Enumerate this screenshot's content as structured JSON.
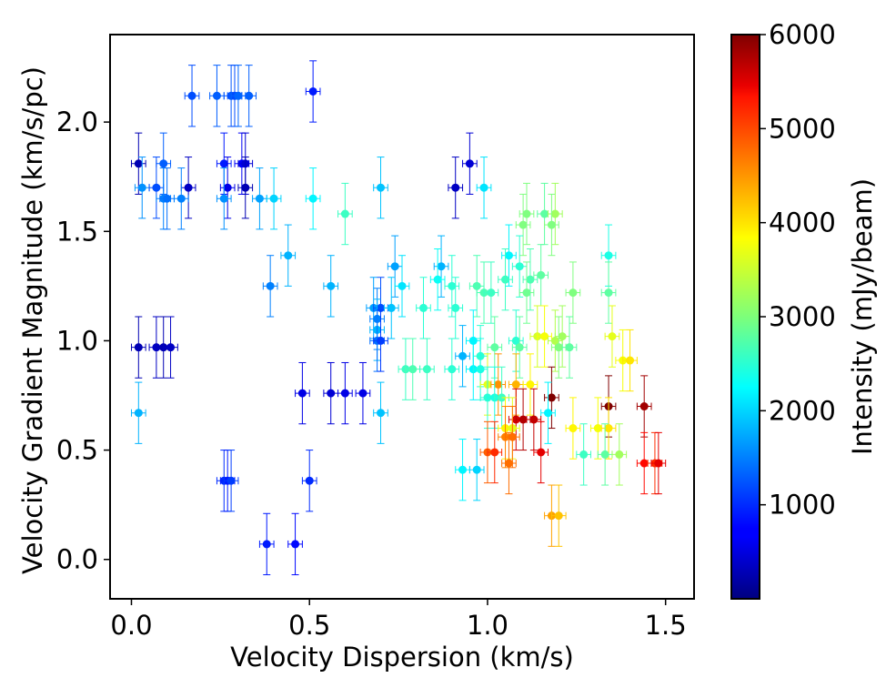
{
  "chart_data": {
    "type": "scatter",
    "title": "",
    "xlabel": "Velocity Dispersion (km/s)",
    "ylabel": "Velocity Gradient Magnitude (km/s/pc)",
    "xlim": [
      -0.06,
      1.58
    ],
    "ylim": [
      -0.18,
      2.4
    ],
    "xticks": [
      0.0,
      0.5,
      1.0,
      1.5
    ],
    "xtick_labels": [
      "0.0",
      "0.5",
      "1.0",
      "1.5"
    ],
    "yticks": [
      0.0,
      0.5,
      1.0,
      1.5,
      2.0
    ],
    "ytick_labels": [
      "0.0",
      "0.5",
      "1.0",
      "1.5",
      "2.0"
    ],
    "x_error": 0.02,
    "colorbar": {
      "label": "Intensity (mJy/beam)",
      "range": [
        0,
        6000
      ],
      "ticks": [
        1000,
        2000,
        3000,
        4000,
        5000,
        6000
      ],
      "tick_labels": [
        "1000",
        "2000",
        "3000",
        "4000",
        "5000",
        "6000"
      ],
      "colormap": "jet"
    },
    "columns": [
      "x",
      "y",
      "yerr",
      "intensity"
    ],
    "points": [
      [
        0.17,
        2.12,
        0.14,
        1200
      ],
      [
        0.24,
        2.12,
        0.14,
        1300
      ],
      [
        0.28,
        2.12,
        0.14,
        1250
      ],
      [
        0.29,
        2.12,
        0.14,
        1200
      ],
      [
        0.3,
        2.12,
        0.14,
        1350
      ],
      [
        0.33,
        2.12,
        0.14,
        1300
      ],
      [
        0.51,
        2.14,
        0.14,
        900
      ],
      [
        0.02,
        1.81,
        0.14,
        300
      ],
      [
        0.09,
        1.81,
        0.14,
        1300
      ],
      [
        0.26,
        1.81,
        0.14,
        900
      ],
      [
        0.31,
        1.81,
        0.14,
        700
      ],
      [
        0.32,
        1.81,
        0.14,
        500
      ],
      [
        0.95,
        1.81,
        0.14,
        500
      ],
      [
        0.03,
        1.7,
        0.14,
        1600
      ],
      [
        0.07,
        1.7,
        0.14,
        1200
      ],
      [
        0.16,
        1.7,
        0.14,
        400
      ],
      [
        0.27,
        1.7,
        0.14,
        600
      ],
      [
        0.32,
        1.7,
        0.14,
        300
      ],
      [
        0.7,
        1.7,
        0.14,
        1900
      ],
      [
        0.91,
        1.7,
        0.14,
        400
      ],
      [
        0.99,
        1.7,
        0.14,
        2100
      ],
      [
        0.09,
        1.65,
        0.14,
        1500
      ],
      [
        0.1,
        1.65,
        0.14,
        1400
      ],
      [
        0.14,
        1.65,
        0.14,
        1500
      ],
      [
        0.26,
        1.65,
        0.14,
        1600
      ],
      [
        0.36,
        1.65,
        0.14,
        1700
      ],
      [
        0.4,
        1.65,
        0.14,
        2000
      ],
      [
        0.51,
        1.65,
        0.14,
        2200
      ],
      [
        0.6,
        1.58,
        0.14,
        2600
      ],
      [
        1.11,
        1.58,
        0.14,
        3000
      ],
      [
        1.16,
        1.58,
        0.14,
        2800
      ],
      [
        1.19,
        1.58,
        0.14,
        3200
      ],
      [
        1.1,
        1.53,
        0.14,
        3000
      ],
      [
        1.18,
        1.53,
        0.14,
        3000
      ],
      [
        0.44,
        1.39,
        0.14,
        1800
      ],
      [
        1.06,
        1.39,
        0.14,
        2200
      ],
      [
        1.34,
        1.39,
        0.14,
        2400
      ],
      [
        0.74,
        1.34,
        0.14,
        1700
      ],
      [
        0.87,
        1.34,
        0.14,
        1800
      ],
      [
        1.09,
        1.34,
        0.14,
        2500
      ],
      [
        1.15,
        1.3,
        0.14,
        2800
      ],
      [
        0.86,
        1.28,
        0.14,
        2300
      ],
      [
        1.05,
        1.28,
        0.14,
        2600
      ],
      [
        1.12,
        1.28,
        0.14,
        2700
      ],
      [
        0.39,
        1.25,
        0.14,
        1500
      ],
      [
        0.56,
        1.25,
        0.14,
        1800
      ],
      [
        0.76,
        1.25,
        0.14,
        2100
      ],
      [
        0.9,
        1.25,
        0.14,
        2500
      ],
      [
        0.97,
        1.25,
        0.14,
        2700
      ],
      [
        0.99,
        1.22,
        0.14,
        2700
      ],
      [
        1.01,
        1.22,
        0.14,
        2600
      ],
      [
        1.11,
        1.22,
        0.14,
        2900
      ],
      [
        1.24,
        1.22,
        0.14,
        3000
      ],
      [
        1.34,
        1.22,
        0.14,
        2800
      ],
      [
        0.68,
        1.15,
        0.14,
        1700
      ],
      [
        0.7,
        1.15,
        0.14,
        1200
      ],
      [
        0.73,
        1.15,
        0.14,
        1900
      ],
      [
        0.82,
        1.15,
        0.14,
        2500
      ],
      [
        0.91,
        1.15,
        0.14,
        2500
      ],
      [
        0.69,
        1.1,
        0.14,
        1500
      ],
      [
        0.69,
        1.05,
        0.14,
        1800
      ],
      [
        0.69,
        1.0,
        0.14,
        1400
      ],
      [
        0.7,
        1.0,
        0.14,
        1100
      ],
      [
        0.96,
        1.0,
        0.14,
        2200
      ],
      [
        1.08,
        1.0,
        0.14,
        2500
      ],
      [
        1.14,
        1.02,
        0.14,
        3500
      ],
      [
        1.16,
        1.02,
        0.14,
        3700
      ],
      [
        1.19,
        1.0,
        0.14,
        3300
      ],
      [
        1.21,
        1.02,
        0.14,
        3200
      ],
      [
        1.35,
        1.02,
        0.14,
        3600
      ],
      [
        1.02,
        0.97,
        0.14,
        2800
      ],
      [
        1.09,
        0.97,
        0.14,
        2800
      ],
      [
        1.2,
        0.97,
        0.14,
        3000
      ],
      [
        1.23,
        0.97,
        0.14,
        2800
      ],
      [
        0.02,
        0.97,
        0.14,
        300
      ],
      [
        0.07,
        0.97,
        0.14,
        400
      ],
      [
        0.09,
        0.97,
        0.14,
        300
      ],
      [
        0.11,
        0.97,
        0.14,
        400
      ],
      [
        0.93,
        0.93,
        0.14,
        1800
      ],
      [
        0.98,
        0.93,
        0.14,
        2500
      ],
      [
        1.38,
        0.91,
        0.14,
        3700
      ],
      [
        1.4,
        0.91,
        0.14,
        3900
      ],
      [
        0.77,
        0.87,
        0.14,
        2600
      ],
      [
        0.79,
        0.87,
        0.14,
        2700
      ],
      [
        0.83,
        0.87,
        0.14,
        2600
      ],
      [
        0.9,
        0.87,
        0.14,
        2500
      ],
      [
        0.96,
        0.87,
        0.14,
        2200
      ],
      [
        0.98,
        0.87,
        0.14,
        2400
      ],
      [
        1.0,
        0.8,
        0.14,
        3600
      ],
      [
        1.03,
        0.8,
        0.14,
        4400
      ],
      [
        1.08,
        0.8,
        0.14,
        4200
      ],
      [
        1.12,
        0.8,
        0.14,
        3800
      ],
      [
        0.48,
        0.76,
        0.14,
        600
      ],
      [
        0.56,
        0.76,
        0.14,
        500
      ],
      [
        0.6,
        0.76,
        0.14,
        600
      ],
      [
        0.65,
        0.76,
        0.14,
        600
      ],
      [
        1.0,
        0.74,
        0.14,
        2500
      ],
      [
        1.02,
        0.74,
        0.14,
        2400
      ],
      [
        1.04,
        0.74,
        0.14,
        2600
      ],
      [
        1.18,
        0.74,
        0.14,
        6000
      ],
      [
        1.34,
        0.7,
        0.14,
        6000
      ],
      [
        1.44,
        0.7,
        0.14,
        5800
      ],
      [
        0.7,
        0.67,
        0.14,
        1900
      ],
      [
        1.17,
        0.67,
        0.14,
        2200
      ],
      [
        0.02,
        0.67,
        0.14,
        1800
      ],
      [
        1.08,
        0.64,
        0.14,
        5500
      ],
      [
        1.1,
        0.64,
        0.14,
        5700
      ],
      [
        1.13,
        0.64,
        0.14,
        5600
      ],
      [
        1.05,
        0.6,
        0.14,
        3800
      ],
      [
        1.07,
        0.6,
        0.14,
        3600
      ],
      [
        1.24,
        0.6,
        0.14,
        3800
      ],
      [
        1.31,
        0.6,
        0.14,
        3700
      ],
      [
        1.34,
        0.6,
        0.14,
        3900
      ],
      [
        1.05,
        0.56,
        0.14,
        4500
      ],
      [
        1.07,
        0.56,
        0.14,
        4600
      ],
      [
        1.0,
        0.49,
        0.14,
        4700
      ],
      [
        1.02,
        0.49,
        0.14,
        5000
      ],
      [
        1.15,
        0.49,
        0.14,
        5400
      ],
      [
        1.27,
        0.48,
        0.14,
        2600
      ],
      [
        1.33,
        0.48,
        0.14,
        2800
      ],
      [
        1.37,
        0.48,
        0.14,
        3200
      ],
      [
        1.44,
        0.44,
        0.14,
        5200
      ],
      [
        1.47,
        0.44,
        0.14,
        5000
      ],
      [
        1.48,
        0.44,
        0.14,
        5400
      ],
      [
        1.06,
        0.44,
        0.14,
        4600
      ],
      [
        0.93,
        0.41,
        0.14,
        2200
      ],
      [
        0.97,
        0.41,
        0.14,
        2000
      ],
      [
        0.26,
        0.36,
        0.14,
        1000
      ],
      [
        0.27,
        0.36,
        0.14,
        900
      ],
      [
        0.28,
        0.36,
        0.14,
        1100
      ],
      [
        0.5,
        0.36,
        0.14,
        1000
      ],
      [
        1.18,
        0.2,
        0.14,
        4300
      ],
      [
        1.2,
        0.2,
        0.14,
        4100
      ],
      [
        0.38,
        0.07,
        0.14,
        900
      ],
      [
        0.46,
        0.07,
        0.14,
        800
      ]
    ]
  }
}
